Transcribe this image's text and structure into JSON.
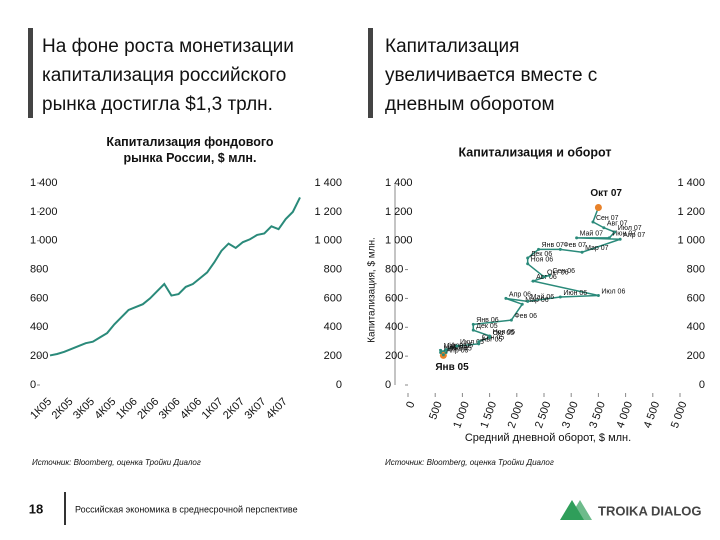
{
  "headings": [
    "На фоне роста монетизации капитализация российского рынка достигла $1,3 трлн.",
    "Капитализация увеличивается вместе с дневным оборотом"
  ],
  "sources": [
    "Источник: Bloomberg, оценка Тройки Диалог",
    "Источник: Bloomberg, оценка Тройки Диалог"
  ],
  "footer": {
    "page": "18",
    "text": "Российская экономика в среднесрочной перспективе",
    "logo": "TROIKA DIALOG"
  },
  "chart_data": [
    {
      "type": "line",
      "title": "Капитализация фондового рынка России, $ млн.",
      "color": "#2a8a7a",
      "categories": [
        "1К05",
        null,
        null,
        "2К05",
        null,
        null,
        "3К05",
        null,
        null,
        "4К05",
        null,
        null,
        "1К06",
        null,
        null,
        "2К06",
        null,
        null,
        "3К06",
        null,
        null,
        "4К06",
        null,
        null,
        "1К07",
        null,
        null,
        "2К07",
        null,
        null,
        "3К07",
        null,
        null,
        "4К07",
        null,
        null
      ],
      "values": [
        205,
        215,
        230,
        250,
        270,
        290,
        300,
        330,
        360,
        420,
        470,
        520,
        540,
        560,
        600,
        650,
        700,
        620,
        630,
        680,
        700,
        740,
        780,
        850,
        930,
        980,
        950,
        990,
        1010,
        1040,
        1050,
        1100,
        1080,
        1150,
        1200,
        1300
      ],
      "ylim": [
        0,
        1400
      ],
      "yticks": [
        0,
        200,
        400,
        600,
        800,
        {
          "value": 1000,
          "label": "1 000"
        },
        {
          "value": 1200,
          "label": "1 200"
        },
        {
          "value": 1400,
          "label": "1 400"
        }
      ]
    },
    {
      "type": "scatter",
      "title": "Капитализация и оборот",
      "color": "#2a8a7a",
      "highlight_color": "#e8822a",
      "highlight_points": [
        0,
        33
      ],
      "xlabel": "Средний дневной оборот, $ млн.",
      "ylabel": "Капитализация, $ млн.",
      "x": [
        650,
        700,
        600,
        650,
        600,
        700,
        900,
        1300,
        1300,
        1500,
        1500,
        1200,
        1200,
        1900,
        2100,
        1800,
        2200,
        2800,
        3500,
        2300,
        2600,
        2500,
        2200,
        2200,
        2400,
        2800,
        3200,
        3900,
        3100,
        3700,
        3800,
        3600,
        3400,
        3500
      ],
      "y": [
        205,
        225,
        240,
        210,
        225,
        245,
        270,
        285,
        300,
        330,
        340,
        380,
        420,
        450,
        560,
        600,
        580,
        610,
        620,
        720,
        760,
        750,
        840,
        880,
        940,
        940,
        920,
        1010,
        1020,
        1020,
        1060,
        1090,
        1130,
        1230
      ],
      "point_labels": [
        "Янв 05",
        "Фев 05",
        "Мар 05",
        "Апр 05",
        "Май 05",
        "Июн 05",
        "Июл 05",
        "Авг 05",
        "Сен 05",
        "Окт 05",
        "Ноя 05",
        "Дек 05",
        "Янв 06",
        "Фев 06",
        "Мар 06",
        "Апр 06",
        "Май 06",
        "Июн 06",
        "Июл 06",
        "Авг 06",
        "Сен 06",
        "Окт 06",
        "Ноя 06",
        "Дек 06",
        "Янв 07",
        "Фев 07",
        "Мар 07",
        "Апр 07",
        "Май 07",
        "Июн 07",
        "Июл 07",
        "Авг 07",
        "Сен 07",
        "Окт 07"
      ],
      "xlim": [
        0,
        5000
      ],
      "xticks": [
        0,
        500,
        {
          "value": 1000,
          "label": "1 000"
        },
        {
          "value": 1500,
          "label": "1 500"
        },
        {
          "value": 2000,
          "label": "2 000"
        },
        {
          "value": 2500,
          "label": "2 500"
        },
        {
          "value": 3000,
          "label": "3 000"
        },
        {
          "value": 3500,
          "label": "3 500"
        },
        {
          "value": 4000,
          "label": "4 000"
        },
        {
          "value": 4500,
          "label": "4 500"
        },
        {
          "value": 5000,
          "label": "5 000"
        }
      ],
      "ylim": [
        0,
        1400
      ],
      "yticks": [
        0,
        200,
        400,
        600,
        800,
        {
          "value": 1000,
          "label": "1 000"
        },
        {
          "value": 1200,
          "label": "1 200"
        },
        {
          "value": 1400,
          "label": "1 400"
        }
      ]
    }
  ]
}
